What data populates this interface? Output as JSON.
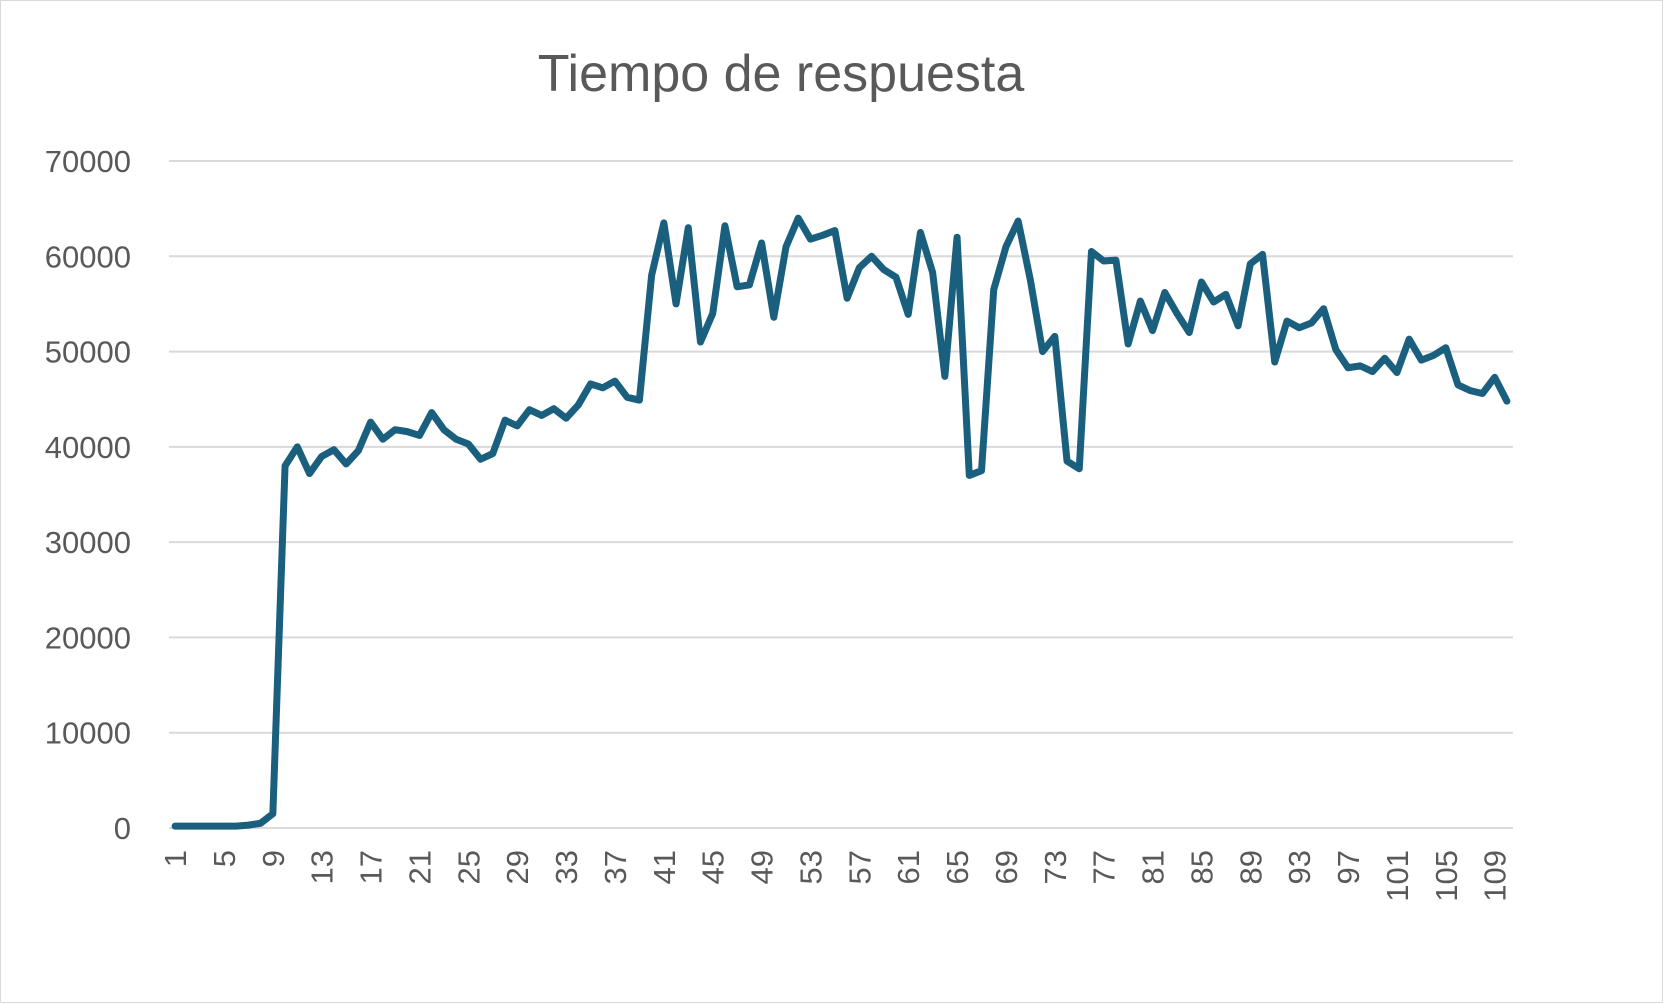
{
  "chart_data": {
    "type": "line",
    "title": "Tiempo de respuesta",
    "xlabel": "",
    "ylabel": "",
    "ylim": [
      0,
      70000
    ],
    "yticks": [
      0,
      10000,
      20000,
      30000,
      40000,
      50000,
      60000,
      70000
    ],
    "xtick_labels": [
      "1",
      "5",
      "9",
      "13",
      "17",
      "21",
      "25",
      "29",
      "33",
      "37",
      "41",
      "45",
      "49",
      "53",
      "57",
      "61",
      "65",
      "69",
      "73",
      "77",
      "81",
      "85",
      "89",
      "93",
      "97",
      "101",
      "105",
      "109"
    ],
    "xtick_positions": [
      1,
      5,
      9,
      13,
      17,
      21,
      25,
      29,
      33,
      37,
      41,
      45,
      49,
      53,
      57,
      61,
      65,
      69,
      73,
      77,
      81,
      85,
      89,
      93,
      97,
      101,
      105,
      109
    ],
    "x_count": 110,
    "grid": true,
    "legend": "none",
    "colors": {
      "series": "#1b5f7f",
      "grid": "#d9d9d9",
      "text": "#595959"
    },
    "series": [
      {
        "values": [
          200,
          200,
          200,
          200,
          200,
          200,
          300,
          500,
          1500,
          38000,
          40000,
          37200,
          39000,
          39700,
          38200,
          39600,
          42600,
          40800,
          41800,
          41600,
          41200,
          43600,
          41800,
          40800,
          40300,
          38700,
          39300,
          42800,
          42200,
          43900,
          43300,
          44000,
          43000,
          44400,
          46600,
          46200,
          46900,
          45200,
          44900,
          58000,
          63500,
          55000,
          63000,
          51000,
          54000,
          63200,
          56800,
          57000,
          61400,
          53600,
          61000,
          64000,
          61800,
          62200,
          62700,
          55600,
          58800,
          60000,
          58600,
          57800,
          53900,
          62500,
          58300,
          47400,
          62000,
          37000,
          37500,
          56500,
          61000,
          63700,
          57500,
          50000,
          51600,
          38500,
          37700,
          60500,
          59500,
          59600,
          50800,
          55300,
          52200,
          56200,
          54000,
          52000,
          57300,
          55200,
          56000,
          52700,
          59200,
          60200,
          48900,
          53200,
          52500,
          53000,
          54500,
          50200,
          48300,
          48500,
          47900,
          49300,
          47800,
          51300,
          49100,
          49600,
          50400,
          46500,
          45900,
          45600,
          47300,
          44800
        ]
      }
    ]
  }
}
